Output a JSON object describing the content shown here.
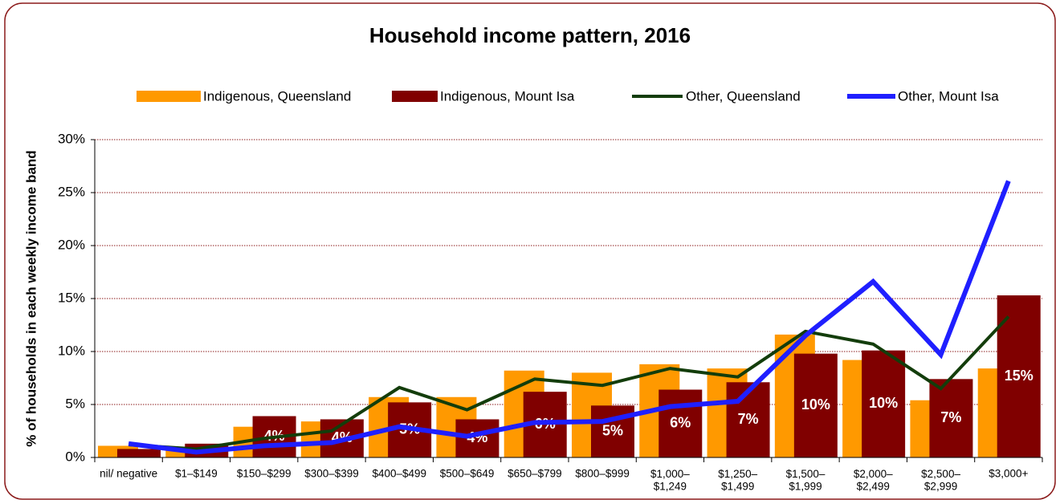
{
  "chart_data": {
    "type": "bar_line",
    "title": "Household income pattern, 2016",
    "y_label": "% of households in each weekly income band",
    "categories": [
      "nil/ negative",
      "$1–$149",
      "$150–$299",
      "$300–$399",
      "$400–$499",
      "$500–$649",
      "$650–$799",
      "$800–$999",
      "$1,000–\n$1,249",
      "$1,250–\n$1,499",
      "$1,500–\n$1,999",
      "$2,000–\n$2,499",
      "$2,500–\n$2,999",
      "$3,000+"
    ],
    "series": [
      {
        "name": "Indigenous, Queensland",
        "kind": "bar",
        "color": "#ff9900",
        "values": [
          1.1,
          1.0,
          2.9,
          3.4,
          5.7,
          5.7,
          8.2,
          8.0,
          8.8,
          8.4,
          11.6,
          9.2,
          5.4,
          8.4
        ]
      },
      {
        "name": "Indigenous, Mount Isa",
        "kind": "bar",
        "color": "#800000",
        "values": [
          0.8,
          1.3,
          3.9,
          3.6,
          5.2,
          3.6,
          6.2,
          4.9,
          6.4,
          7.1,
          9.8,
          10.1,
          7.4,
          15.3
        ],
        "value_labels": [
          null,
          null,
          "4%",
          "4%",
          "5%",
          "4%",
          "6%",
          "5%",
          "6%",
          "7%",
          "10%",
          "10%",
          "7%",
          "15%"
        ]
      },
      {
        "name": "Other, Queensland",
        "kind": "line",
        "color": "#133d0b",
        "values": [
          1.2,
          0.8,
          1.8,
          2.5,
          6.6,
          4.5,
          7.4,
          6.8,
          8.4,
          7.6,
          11.9,
          10.7,
          6.5,
          13.3
        ]
      },
      {
        "name": "Other, Mount Isa",
        "kind": "line",
        "color": "#1f1fff",
        "values": [
          1.3,
          0.5,
          1.1,
          1.4,
          2.9,
          2.0,
          3.3,
          3.4,
          4.8,
          5.3,
          11.5,
          16.6,
          9.7,
          26.1
        ]
      }
    ],
    "ylim": [
      0,
      30
    ],
    "yticks": [
      {
        "value": 0,
        "label": "0%"
      },
      {
        "value": 5,
        "label": "5%"
      },
      {
        "value": 10,
        "label": "10%"
      },
      {
        "value": 15,
        "label": "15%"
      },
      {
        "value": 20,
        "label": "20%"
      },
      {
        "value": 25,
        "label": "25%"
      },
      {
        "value": 30,
        "label": "30%"
      }
    ],
    "grid": true,
    "legend": "top"
  }
}
